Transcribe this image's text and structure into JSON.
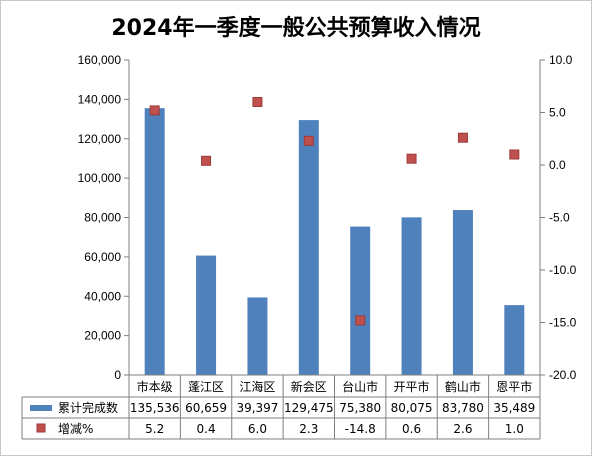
{
  "chart_data": {
    "type": "bar",
    "title": "2024年一季度一般公共预算收入情况",
    "categories": [
      "市本级",
      "蓬江区",
      "江海区",
      "新会区",
      "台山市",
      "开平市",
      "鹤山市",
      "恩平市"
    ],
    "series": [
      {
        "name": "累计完成数",
        "type": "bar",
        "axis": "left",
        "color": "#4f81bd",
        "values": [
          135536,
          60659,
          39397,
          129475,
          75380,
          80075,
          83780,
          35489
        ],
        "labels": [
          "135,536",
          "60,659",
          "39,397",
          "129,475",
          "75,380",
          "80,075",
          "83,780",
          "35,489"
        ]
      },
      {
        "name": "增减%",
        "type": "scatter",
        "axis": "right",
        "color": "#c0504d",
        "values": [
          5.2,
          0.4,
          6.0,
          2.3,
          -14.8,
          0.6,
          2.6,
          1.0
        ],
        "labels": [
          "5.2",
          "0.4",
          "6.0",
          "2.3",
          "-14.8",
          "0.6",
          "2.6",
          "1.0"
        ]
      }
    ],
    "y_left": {
      "range": [
        0,
        160000
      ],
      "ticks": [
        0,
        20000,
        40000,
        60000,
        80000,
        100000,
        120000,
        140000,
        160000
      ],
      "tick_labels": [
        "0",
        "20,000",
        "40,000",
        "60,000",
        "80,000",
        "100,000",
        "120,000",
        "140,000",
        "160,000"
      ]
    },
    "y_right": {
      "range": [
        -20,
        10
      ],
      "ticks": [
        10,
        5,
        0,
        -5,
        -10,
        -15,
        -20
      ],
      "tick_labels": [
        "10.0",
        "5.0",
        "0.0",
        "-5.0",
        "-10.0",
        "-15.0",
        "-20.0"
      ]
    },
    "data_table": true,
    "grid": false
  }
}
